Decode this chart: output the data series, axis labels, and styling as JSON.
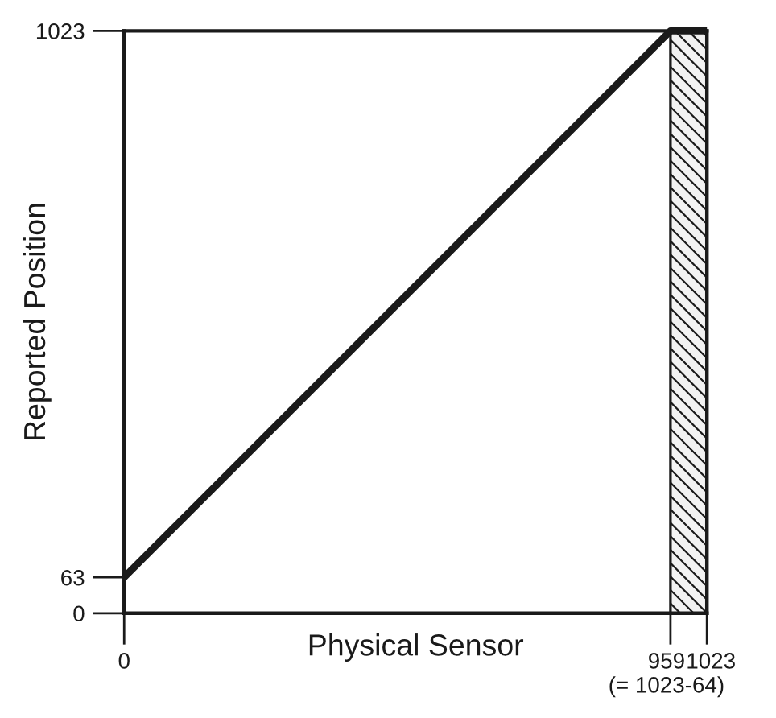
{
  "chart_data": {
    "type": "line",
    "xlabel": "Physical Sensor",
    "ylabel": "Reported Position",
    "x": [
      0,
      959,
      1023
    ],
    "series": [
      {
        "color": "#1a1a1a",
        "values": [
          63,
          1023,
          1023
        ]
      }
    ],
    "xlim": [
      0,
      1023
    ],
    "ylim": [
      0,
      1023
    ],
    "xticks": [
      0,
      {
        "value": 959,
        "label": "959\n(= 1023-64)"
      },
      1023
    ],
    "yticks": [
      0,
      63,
      1023
    ],
    "bands": [
      {
        "axis": "x",
        "from": 959,
        "to": 1023,
        "color": "#1a1a1a"
      }
    ],
    "grid": false,
    "legend": false,
    "marker": "none",
    "line_style": "solid"
  }
}
